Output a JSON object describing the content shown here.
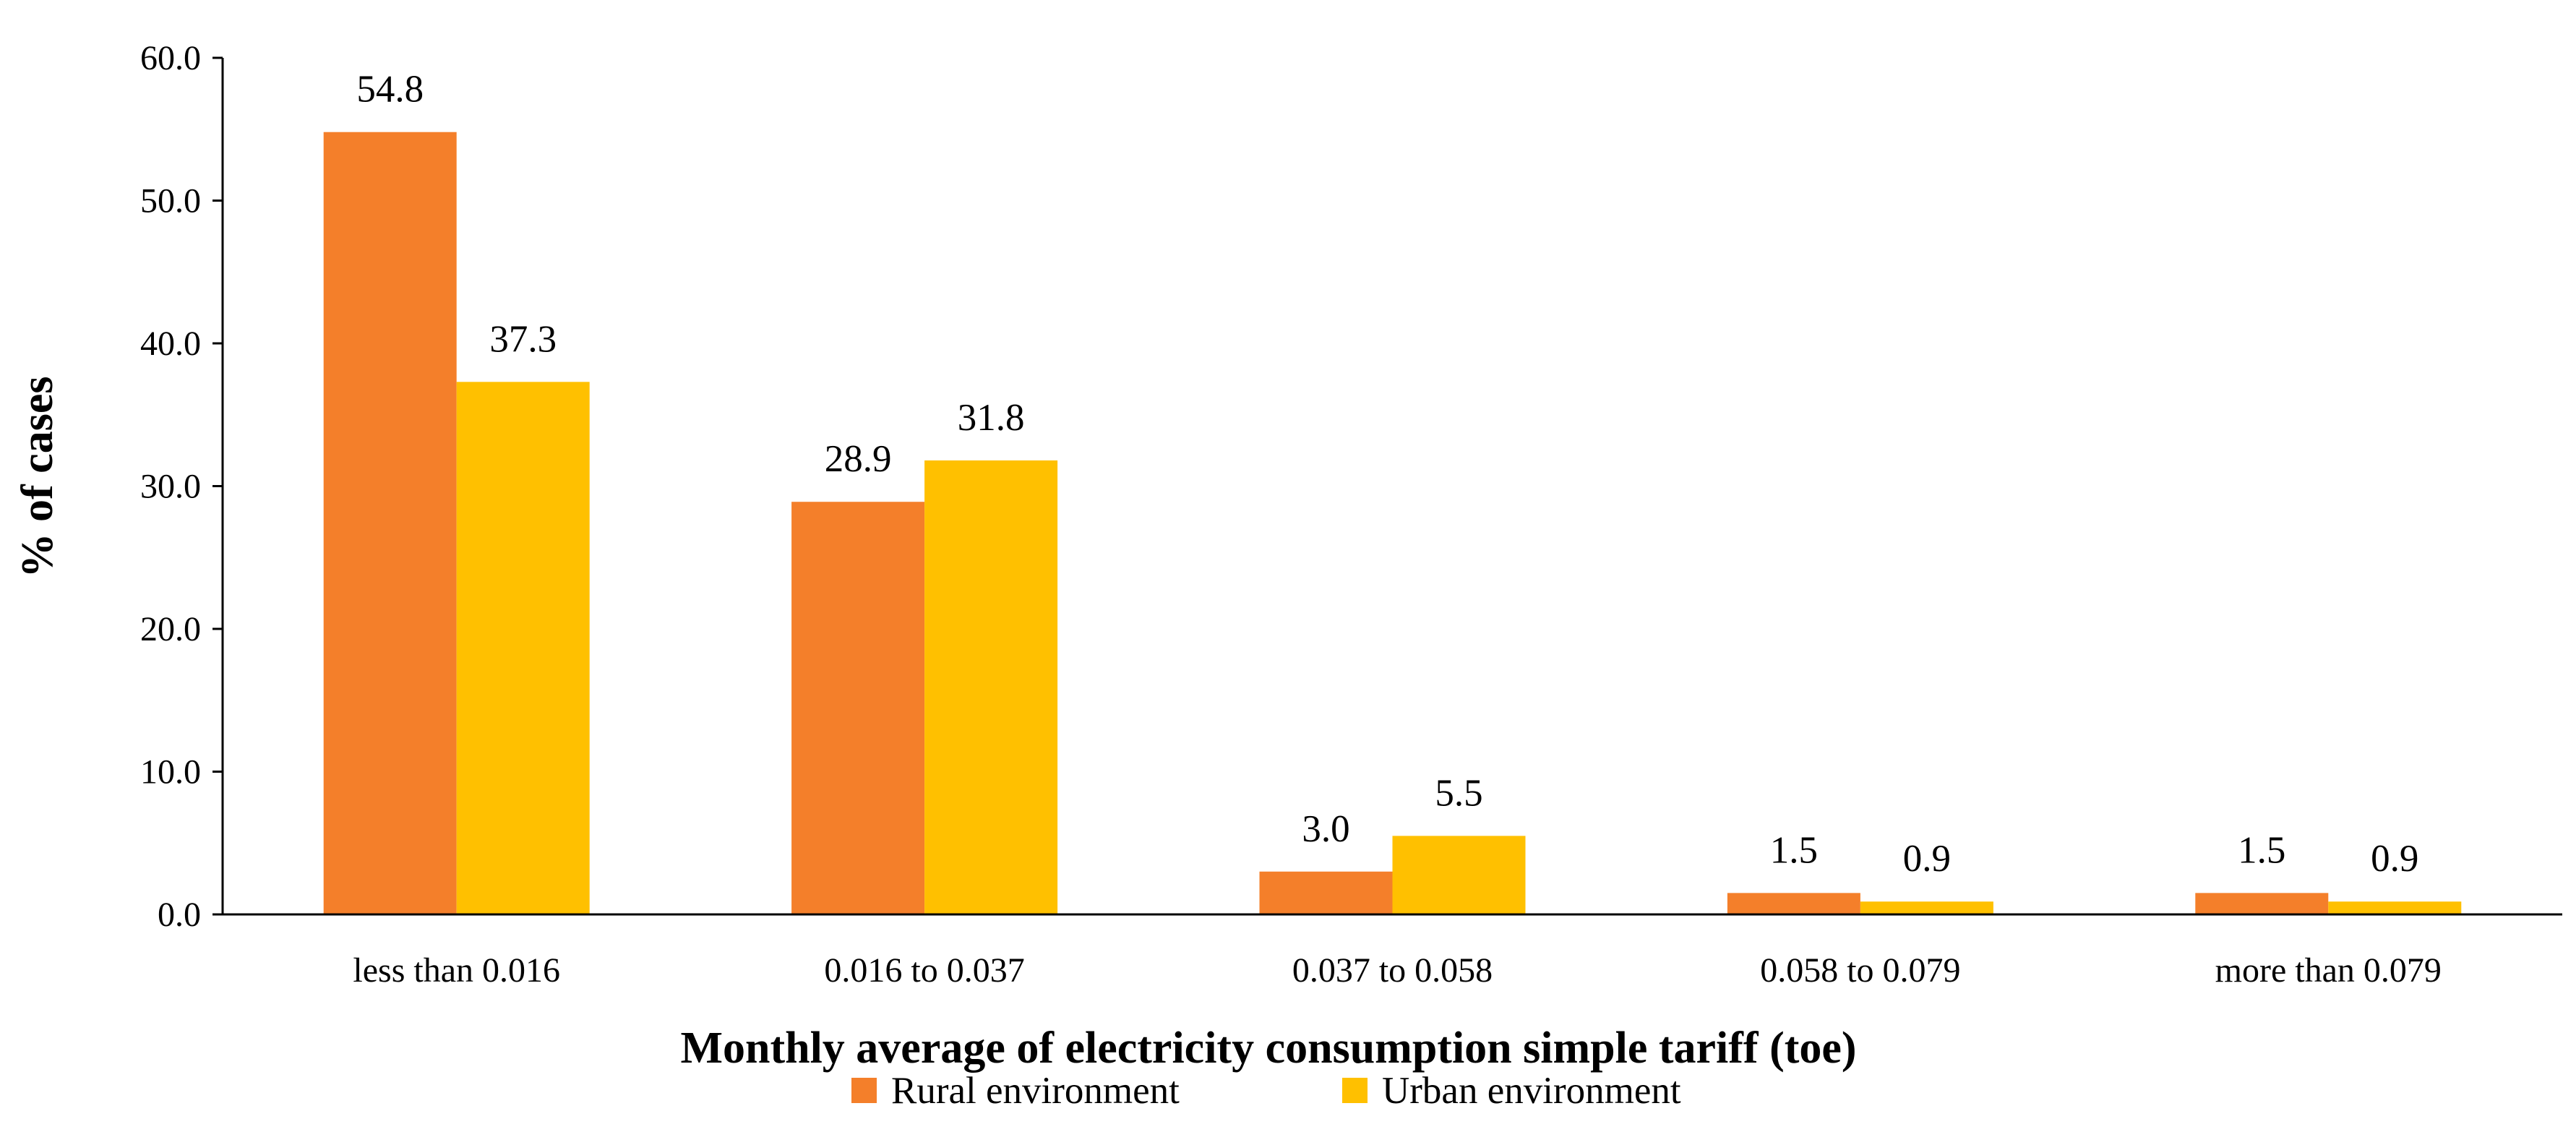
{
  "chart_data": {
    "type": "bar",
    "title": "",
    "xlabel": "Monthly average of electricity consumption simple tariff (toe)",
    "ylabel": "% of cases",
    "categories": [
      "less than 0.016",
      "0.016 to 0.037",
      "0.037 to 0.058",
      "0.058 to 0.079",
      "more than 0.079"
    ],
    "series": [
      {
        "name": "Rural environment",
        "values": [
          54.8,
          28.9,
          3.0,
          1.5,
          1.5
        ],
        "color": "#F47F2A"
      },
      {
        "name": "Urban environment",
        "values": [
          37.3,
          31.8,
          5.5,
          0.9,
          0.9
        ],
        "color": "#FFC000"
      }
    ],
    "yticks": [
      "0.0",
      "10.0",
      "20.0",
      "30.0",
      "40.0",
      "50.0",
      "60.0"
    ],
    "ylim": [
      0,
      60
    ],
    "grid": false,
    "legend_position": "bottom"
  }
}
